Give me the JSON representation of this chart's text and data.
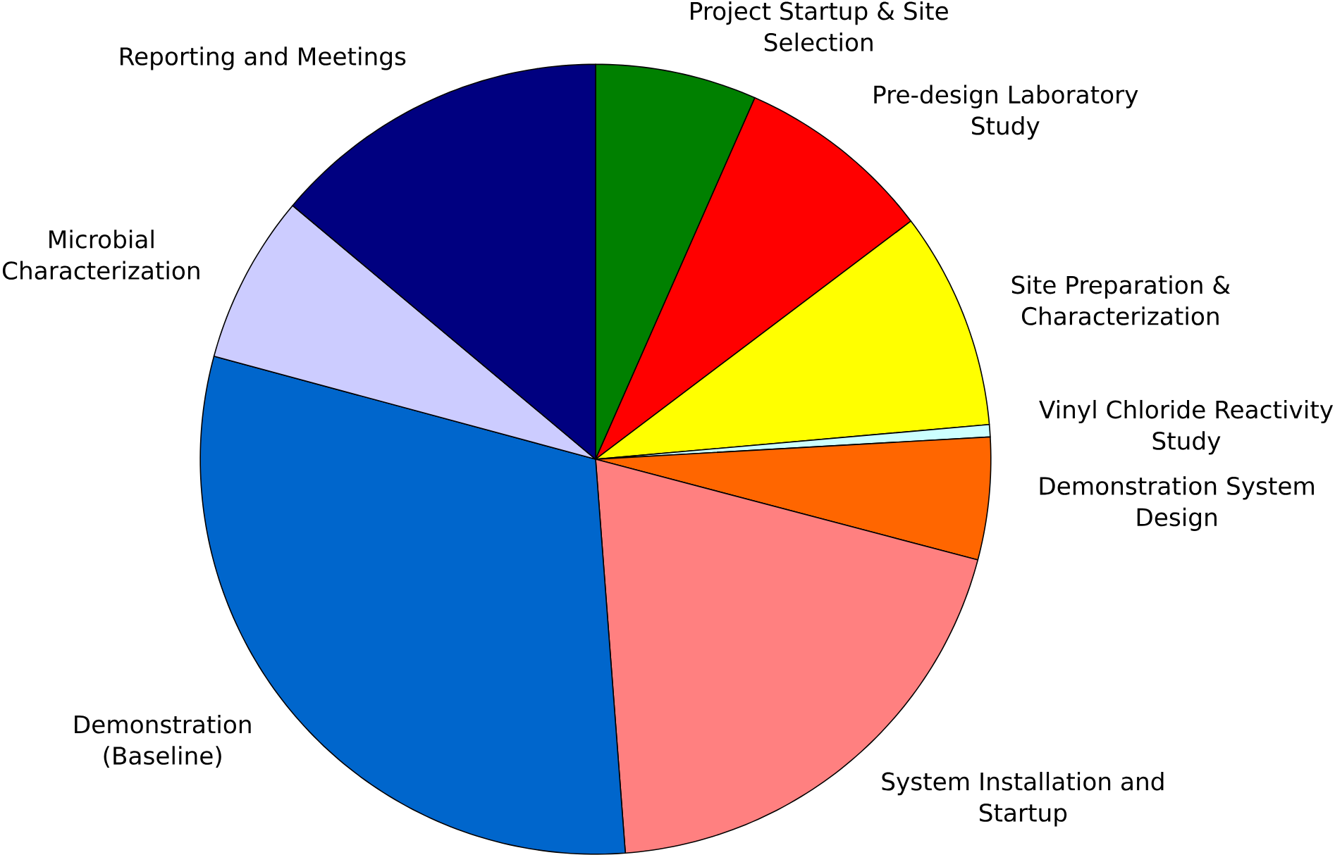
{
  "chart_data": {
    "type": "pie",
    "categories": [
      "Project Startup & Site Selection",
      "Pre-design Laboratory Study",
      "Site Preparation & Characterization",
      "Vinyl Chloride Reactivity Study",
      "Demonstration System Design",
      "System Installation and Startup",
      "Demonstration (Baseline)",
      "Microbial Characterization",
      "Reporting and Meetings"
    ],
    "values": [
      6.6,
      8.1,
      8.9,
      0.5,
      5.0,
      19.7,
      30.4,
      6.9,
      13.9
    ],
    "colors": [
      "#008000",
      "#ff0000",
      "#ffff00",
      "#ccffff",
      "#ff6600",
      "#ff8080",
      "#0066cc",
      "#ccccff",
      "#000080"
    ]
  }
}
